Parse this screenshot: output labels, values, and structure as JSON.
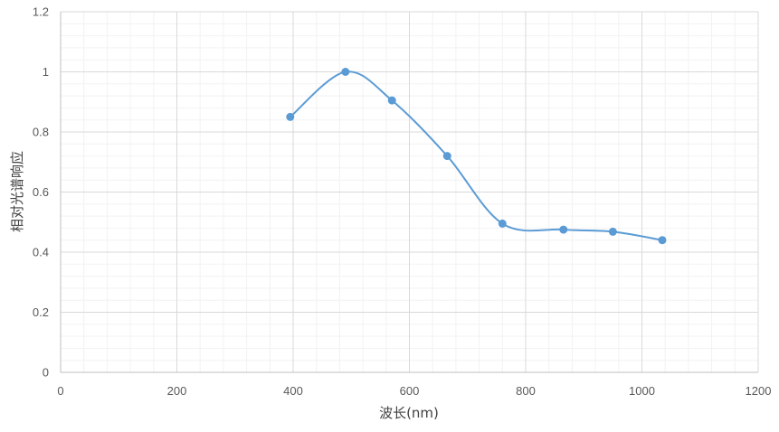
{
  "chart_data": {
    "type": "scatter",
    "subtype": "smooth-line-with-markers",
    "title": "",
    "xlabel": "波长(nm)",
    "ylabel": "相对光谱响应",
    "xlim": [
      0,
      1200
    ],
    "ylim": [
      0,
      1.2
    ],
    "x_ticks": [
      "0",
      "200",
      "400",
      "600",
      "800",
      "1000",
      "1200"
    ],
    "y_ticks": [
      "0",
      "0.2",
      "0.4",
      "0.6",
      "0.8",
      "1",
      "1.2"
    ],
    "grid": "major-and-minor",
    "legend": "none",
    "series": [
      {
        "color": "#5B9BD5",
        "points": [
          {
            "x": 395,
            "y": 0.85
          },
          {
            "x": 490,
            "y": 1.0
          },
          {
            "x": 570,
            "y": 0.905
          },
          {
            "x": 665,
            "y": 0.72
          },
          {
            "x": 760,
            "y": 0.495
          },
          {
            "x": 865,
            "y": 0.475
          },
          {
            "x": 950,
            "y": 0.468
          },
          {
            "x": 1035,
            "y": 0.44
          }
        ]
      }
    ]
  },
  "colors": {
    "series": "#5B9BD5",
    "major_grid": "#D9D9D9",
    "minor_grid": "#F2F2F2",
    "axis": "#BFBFBF",
    "text": "#595959"
  }
}
